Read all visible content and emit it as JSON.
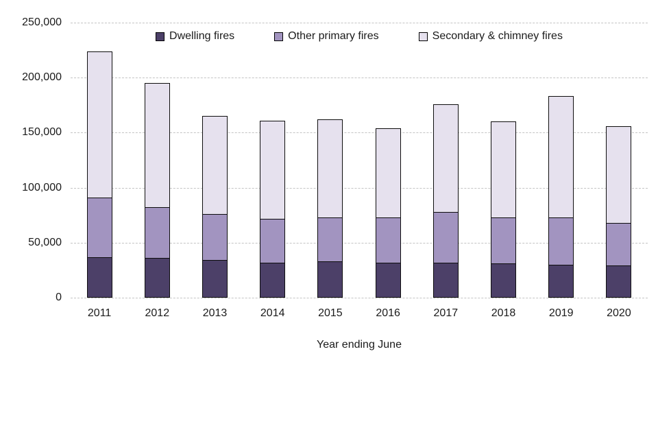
{
  "chart_data": {
    "type": "bar",
    "stacked": true,
    "title": "",
    "xlabel": "Year ending June",
    "ylabel": "",
    "categories": [
      "2011",
      "2012",
      "2013",
      "2014",
      "2015",
      "2016",
      "2017",
      "2018",
      "2019",
      "2020"
    ],
    "series": [
      {
        "name": "Dwelling fires",
        "color": "#4c4068",
        "values": [
          37000,
          36000,
          34000,
          32000,
          33000,
          32000,
          32000,
          31000,
          30000,
          29000
        ]
      },
      {
        "name": "Other primary fires",
        "color": "#a294c0",
        "values": [
          54000,
          46000,
          42000,
          40000,
          40000,
          41000,
          46000,
          42000,
          43000,
          39000
        ]
      },
      {
        "name": "Secondary & chimney fires",
        "color": "#e6e1ee",
        "values": [
          133000,
          113000,
          89000,
          89000,
          89000,
          81000,
          98000,
          87000,
          110000,
          88000
        ]
      }
    ],
    "totals": [
      224000,
      195000,
      165000,
      161000,
      162000,
      154000,
      176000,
      160000,
      183000,
      156000
    ],
    "ylim": [
      0,
      250000
    ],
    "ytick_step": 50000,
    "ytick_labels": [
      "0",
      "50,000",
      "100,000",
      "150,000",
      "200,000",
      "250,000"
    ],
    "grid": true,
    "grid_style": "dashed",
    "legend_position": "top"
  }
}
